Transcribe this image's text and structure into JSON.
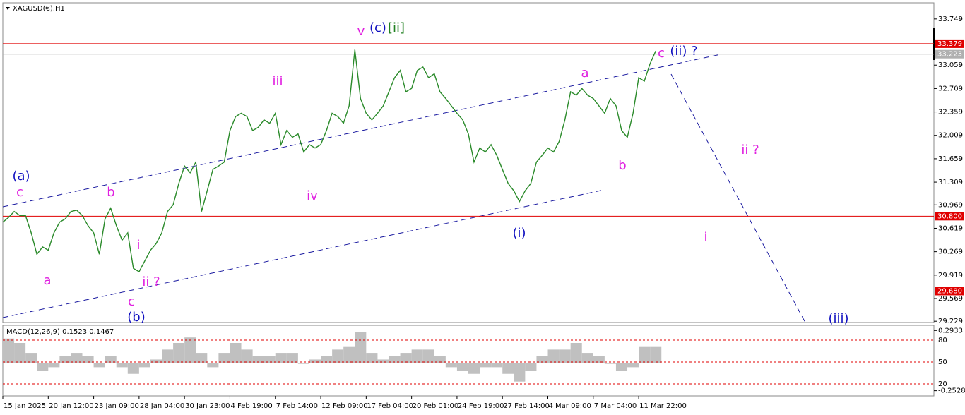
{
  "chart_data": {
    "type": "line",
    "title": "XAGUSD(€),H1",
    "ylim": [
      29.21,
      33.99
    ],
    "xlim": [
      0,
      164
    ],
    "yticks": [
      33.749,
      33.059,
      32.709,
      32.359,
      32.009,
      31.659,
      31.309,
      30.969,
      30.619,
      30.269,
      29.919,
      29.569,
      29.229
    ],
    "xticks": [
      {
        "value": 0,
        "label": "15 Jan 2025"
      },
      {
        "value": 8,
        "label": "20 Jan 12:00"
      },
      {
        "value": 16,
        "label": "23 Jan 09:00"
      },
      {
        "value": 24,
        "label": "28 Jan 04:00"
      },
      {
        "value": 32,
        "label": "30 Jan 23:00"
      },
      {
        "value": 40,
        "label": "4 Feb 19:00"
      },
      {
        "value": 48,
        "label": "7 Feb 14:00"
      },
      {
        "value": 56,
        "label": "12 Feb 09:00"
      },
      {
        "value": 64,
        "label": "17 Feb 04:00"
      },
      {
        "value": 72,
        "label": "20 Feb 01:00"
      },
      {
        "value": 80,
        "label": "24 Feb 19:00"
      },
      {
        "value": 88,
        "label": "27 Feb 14:00"
      },
      {
        "value": 96,
        "label": "4 Mar 09:00"
      },
      {
        "value": 104,
        "label": "7 Mar 04:00"
      },
      {
        "value": 112,
        "label": "11 Mar 22:00"
      }
    ],
    "series": [
      {
        "name": "XAGUSD",
        "color": "#2a8a2a",
        "values": [
          30.71,
          30.78,
          30.87,
          30.81,
          30.81,
          30.55,
          30.23,
          30.34,
          30.29,
          30.55,
          30.71,
          30.76,
          30.87,
          30.89,
          30.81,
          30.66,
          30.55,
          30.23,
          30.76,
          30.92,
          30.66,
          30.44,
          30.55,
          30.02,
          29.97,
          30.13,
          30.29,
          30.39,
          30.55,
          30.87,
          30.97,
          31.29,
          31.55,
          31.45,
          31.61,
          30.87,
          31.18,
          31.5,
          31.55,
          31.61,
          32.08,
          32.29,
          32.34,
          32.29,
          32.08,
          32.13,
          32.24,
          32.19,
          32.34,
          31.87,
          32.08,
          31.98,
          32.03,
          31.76,
          31.87,
          31.82,
          31.87,
          32.08,
          32.34,
          32.29,
          32.19,
          32.45,
          33.29,
          32.56,
          32.34,
          32.24,
          32.34,
          32.45,
          32.66,
          32.87,
          32.98,
          32.66,
          32.71,
          32.98,
          33.03,
          32.87,
          32.93,
          32.66,
          32.56,
          32.45,
          32.34,
          32.24,
          32.03,
          31.61,
          31.82,
          31.76,
          31.87,
          31.71,
          31.5,
          31.29,
          31.18,
          31.02,
          31.18,
          31.29,
          31.61,
          31.71,
          31.82,
          31.76,
          31.92,
          32.24,
          32.66,
          32.61,
          32.71,
          32.61,
          32.56,
          32.45,
          32.34,
          32.56,
          32.45,
          32.08,
          31.98,
          32.34,
          32.87,
          32.82,
          33.08,
          33.27
        ]
      }
    ],
    "hlines": [
      {
        "value": 33.379,
        "color": "#e00000"
      },
      {
        "value": 33.223,
        "color": "#b0b0b0"
      },
      {
        "value": 30.8,
        "label": "30.800",
        "color": "#e00000"
      },
      {
        "value": 29.68,
        "label": "29.680",
        "color": "#e00000"
      }
    ],
    "annotations": [
      {
        "text": "(a)",
        "color": "#1010c0"
      },
      {
        "text": "c",
        "color": "#e020e0"
      },
      {
        "text": "a",
        "color": "#e020e0"
      },
      {
        "text": "b",
        "color": "#e020e0"
      },
      {
        "text": "i",
        "color": "#e020e0"
      },
      {
        "text": "ii ?",
        "color": "#e020e0"
      },
      {
        "text": "c",
        "color": "#e020e0"
      },
      {
        "text": "(b)",
        "color": "#1010c0"
      },
      {
        "text": "iii",
        "color": "#e020e0"
      },
      {
        "text": "iv",
        "color": "#e020e0"
      },
      {
        "text": "v",
        "color": "#e020e0"
      },
      {
        "text": "(c)",
        "color": "#1010c0"
      },
      {
        "text": "[ii]",
        "color": "#208020"
      },
      {
        "text": "a",
        "color": "#e020e0"
      },
      {
        "text": "b",
        "color": "#e020e0"
      },
      {
        "text": "c",
        "color": "#e020e0"
      },
      {
        "text": "(ii) ?",
        "color": "#1010c0"
      },
      {
        "text": "(i)",
        "color": "#1010c0"
      },
      {
        "text": "ii ?",
        "color": "#e020e0"
      },
      {
        "text": "i",
        "color": "#e020e0"
      },
      {
        "text": "(iii)",
        "color": "#1010c0"
      }
    ],
    "indicator": {
      "type": "bar",
      "title": "MACD(12,26,9) 0.1523 0.1467",
      "color": "#c0c0c0",
      "ylim": [
        -0.3,
        0.34
      ],
      "yticks": [
        0.2933,
        -0.2528
      ],
      "values": [
        0.22,
        0.18,
        0.09,
        -0.07,
        -0.04,
        0.06,
        0.09,
        0.06,
        -0.04,
        0.06,
        -0.04,
        -0.1,
        -0.04,
        0.03,
        0.12,
        0.18,
        0.23,
        0.09,
        -0.04,
        0.09,
        0.18,
        0.12,
        0.06,
        0.06,
        0.09,
        0.09,
        -0.01,
        0.03,
        0.06,
        0.12,
        0.15,
        0.28,
        0.09,
        0.03,
        0.06,
        0.09,
        0.12,
        0.12,
        0.06,
        -0.04,
        -0.07,
        -0.1,
        -0.04,
        -0.04,
        -0.1,
        -0.17,
        -0.07,
        0.06,
        0.12,
        0.12,
        0.18,
        0.09,
        0.06,
        -0.01,
        -0.07,
        -0.04,
        0.15,
        0.15
      ],
      "levels_ylim": [
        3.5,
        100.3
      ],
      "levels": [
        80,
        50,
        20
      ],
      "level_color": "#e00000"
    }
  }
}
